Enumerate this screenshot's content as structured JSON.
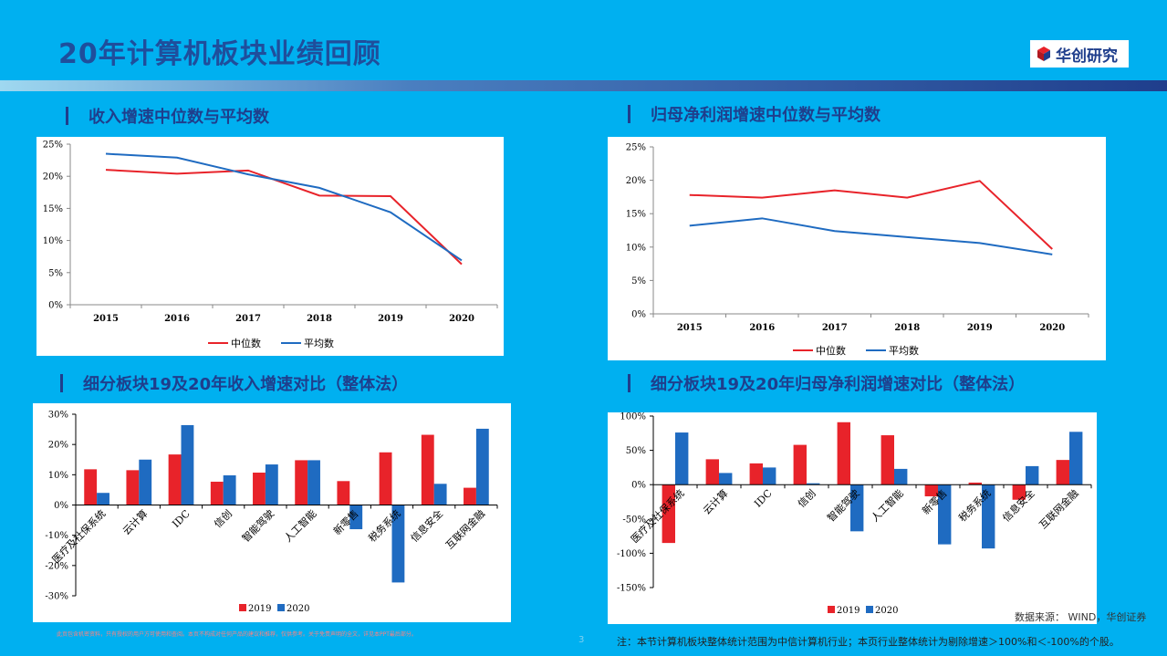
{
  "page": {
    "title": "20年计算机板块业绩回顾",
    "logo_text": "华创研究",
    "page_number": "3",
    "source": "数据来源： WIND，华创证券",
    "note": "注：本节计算机板块整体统计范围为中信计算机行业；本页行业整体统计为剔除增速＞100%和＜-100%的个股。",
    "disclaimer": "此页包含机密资料，只有授权的用户方可使用和查阅。本页不构成对任何产品的建议和推荐，仅供参考。关于免责声明的全文，详见本PPT最后部分。"
  },
  "colors": {
    "red": "#E8232A",
    "blue": "#1F6BC1",
    "title": "#1F4E9C",
    "bg": "#00B0F0"
  },
  "chart_data": [
    {
      "type": "line",
      "title": "收入增速中位数与平均数",
      "x": [
        "2015",
        "2016",
        "2017",
        "2018",
        "2019",
        "2020"
      ],
      "yticks": [
        "0%",
        "5%",
        "10%",
        "15%",
        "20%",
        "25%"
      ],
      "ylim": [
        0,
        25
      ],
      "series": [
        {
          "name": "中位数",
          "color": "#E8232A",
          "values": [
            21.0,
            20.4,
            20.9,
            17.0,
            16.9,
            6.3
          ]
        },
        {
          "name": "平均数",
          "color": "#1F6BC1",
          "values": [
            23.5,
            22.9,
            20.3,
            18.2,
            14.4,
            6.9
          ]
        }
      ],
      "legend": "bottom"
    },
    {
      "type": "line",
      "title": "归母净利润增速中位数与平均数",
      "x": [
        "2015",
        "2016",
        "2017",
        "2018",
        "2019",
        "2020"
      ],
      "yticks": [
        "0%",
        "5%",
        "10%",
        "15%",
        "20%",
        "25%"
      ],
      "ylim": [
        0,
        25
      ],
      "series": [
        {
          "name": "中位数",
          "color": "#E8232A",
          "values": [
            17.8,
            17.4,
            18.5,
            17.4,
            19.9,
            9.7
          ]
        },
        {
          "name": "平均数",
          "color": "#1F6BC1",
          "values": [
            13.2,
            14.3,
            12.4,
            11.5,
            10.6,
            8.9
          ]
        }
      ],
      "legend": "bottom"
    },
    {
      "type": "bar",
      "title": "细分板块19及20年收入增速对比（整体法）",
      "categories": [
        "医疗及社保系统",
        "云计算",
        "IDC",
        "信创",
        "智能驾驶",
        "人工智能",
        "新零售",
        "税务系统",
        "信息安全",
        "互联网金融"
      ],
      "yticks": [
        "-30%",
        "-20%",
        "-10%",
        "0%",
        "10%",
        "20%",
        "30%"
      ],
      "ylim": [
        -30,
        30
      ],
      "series": [
        {
          "name": "2019",
          "color": "#E8232A",
          "values": [
            11.8,
            11.5,
            16.7,
            7.7,
            10.7,
            14.8,
            7.9,
            17.4,
            23.2,
            5.7
          ]
        },
        {
          "name": "2020",
          "color": "#1F6BC1",
          "values": [
            4.0,
            15.0,
            26.4,
            9.8,
            13.4,
            14.8,
            -8.0,
            -25.6,
            7.0,
            25.2
          ]
        }
      ],
      "legend": "bottom"
    },
    {
      "type": "bar",
      "title": "细分板块19及20年归母净利润增速对比（整体法）",
      "categories": [
        "医疗及社保系统",
        "云计算",
        "IDC",
        "信创",
        "智能驾驶",
        "人工智能",
        "新零售",
        "税务系统",
        "信息安全",
        "互联网金融"
      ],
      "yticks": [
        "-150%",
        "-100%",
        "-50%",
        "0%",
        "50%",
        "100%"
      ],
      "ylim": [
        -150,
        100
      ],
      "series": [
        {
          "name": "2019",
          "color": "#E8232A",
          "values": [
            -85,
            37,
            31,
            58,
            91,
            72,
            -17,
            3,
            -22,
            36
          ]
        },
        {
          "name": "2020",
          "color": "#1F6BC1",
          "values": [
            76,
            17,
            25,
            2,
            -68,
            23,
            -87,
            -93,
            27,
            77
          ]
        }
      ],
      "legend": "bottom"
    }
  ]
}
